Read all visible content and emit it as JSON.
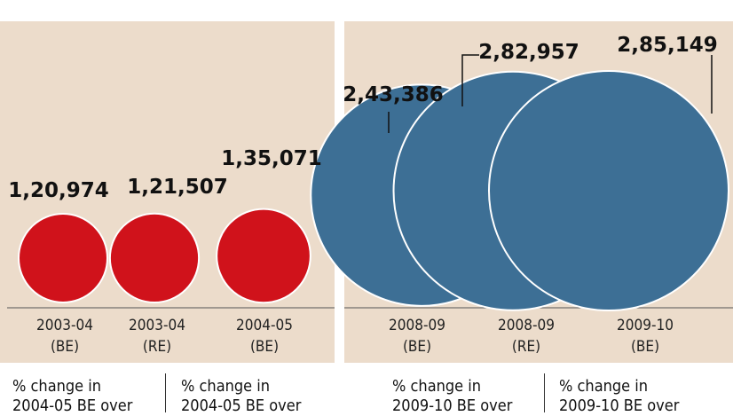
{
  "chart_data": [
    {
      "type": "bubble",
      "categories": [
        "2003-04\n(BE)",
        "2003-04\n(RE)",
        "2004-05\n(BE)"
      ],
      "values": [
        120974,
        121507,
        135071
      ],
      "value_labels": [
        "1,20,974",
        "1,21,507",
        "1,35,071"
      ],
      "color": "#d0121b"
    },
    {
      "type": "bubble",
      "categories": [
        "2008-09\n(BE)",
        "2008-09\n(RE)",
        "2009-10\n(BE)"
      ],
      "values": [
        243386,
        282957,
        285149
      ],
      "value_labels": [
        "2,43,386",
        "2,82,957",
        "2,85,149"
      ],
      "color": "#3d6f95"
    }
  ],
  "footer": [
    "% change in\n2004-05 BE over",
    "% change in\n2004-05 BE over",
    "% change in\n2009-10 BE over",
    "% change in\n2009-10 BE over"
  ]
}
